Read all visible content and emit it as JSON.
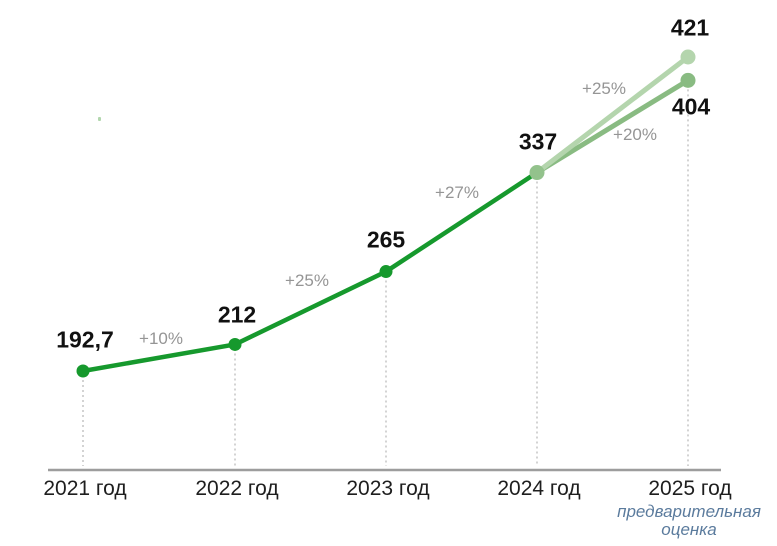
{
  "chart_data": {
    "type": "line",
    "title": "",
    "categories": [
      "2021 год",
      "2022 год",
      "2023 год",
      "2024 год",
      "2025 год"
    ],
    "main_series": {
      "name": "actual-values",
      "x": [
        2021,
        2022,
        2023,
        2024
      ],
      "values": [
        192.7,
        212,
        265,
        337
      ],
      "point_labels": [
        "192,7",
        "212",
        "265",
        "337"
      ],
      "growth_labels": [
        "+10%",
        "+25%",
        "+27%"
      ]
    },
    "projections": [
      {
        "name": "high-estimate-2025",
        "from_value": 337,
        "to_value": 421,
        "point_label": "421",
        "growth_label": "+25%"
      },
      {
        "name": "low-estimate-2025",
        "from_value": 337,
        "to_value": 404,
        "point_label": "404",
        "growth_label": "+20%"
      }
    ],
    "footnote": {
      "line1": "предварительная",
      "line2": "оценка"
    },
    "value_axis_visible": false,
    "grid": "vertical dashed droplines",
    "legend_position": "none",
    "colors": {
      "main_line": "#16992d",
      "projection_light": "#b4d5ad",
      "projection_mid": "#89bb82",
      "forecast_start_dot": "#93c28c",
      "axis_line": "#9d9d9d",
      "dropline": "#c8c8c8",
      "value_text": "#111111",
      "growth_text": "#959595",
      "axis_text": "#1e1e1e",
      "footnote_text": "#5b7b9d"
    }
  }
}
